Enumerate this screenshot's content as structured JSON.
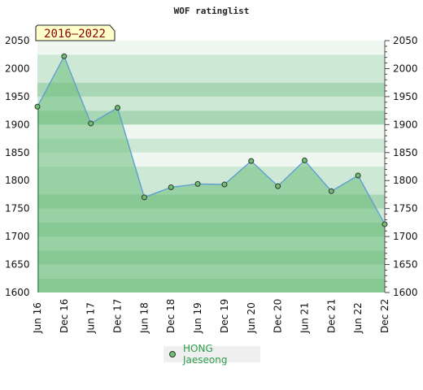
{
  "chart_data": {
    "type": "area",
    "title": "WOF ratinglist",
    "period_badge": "2016–2022",
    "x": [
      "Jun 16",
      "Dec 16",
      "Jun 17",
      "Dec 17",
      "Jun 18",
      "Dec 18",
      "Jun 19",
      "Dec 19",
      "Jun 20",
      "Dec 20",
      "Jun 21",
      "Dec 21",
      "Jun 22",
      "Dec 22"
    ],
    "series": [
      {
        "name": "HONG Jaeseong",
        "values": [
          1932,
          2022,
          1902,
          1930,
          1770,
          1788,
          1794,
          1793,
          1835,
          1790,
          1836,
          1781,
          1809,
          1722
        ]
      }
    ],
    "ylim": [
      1600,
      2050
    ],
    "yticks": [
      1600,
      1650,
      1700,
      1750,
      1800,
      1850,
      1900,
      1950,
      2000,
      2050
    ],
    "legend": "bottom-center",
    "colors": {
      "line": "#5b9bd5",
      "fill": "#6dbd7b",
      "marker": "#6fbf73",
      "band_dark": "#a9d6b4",
      "band_light": "#cde8d4",
      "band_white": "#eef7f0",
      "badge_bg": "#ffffcc"
    }
  }
}
